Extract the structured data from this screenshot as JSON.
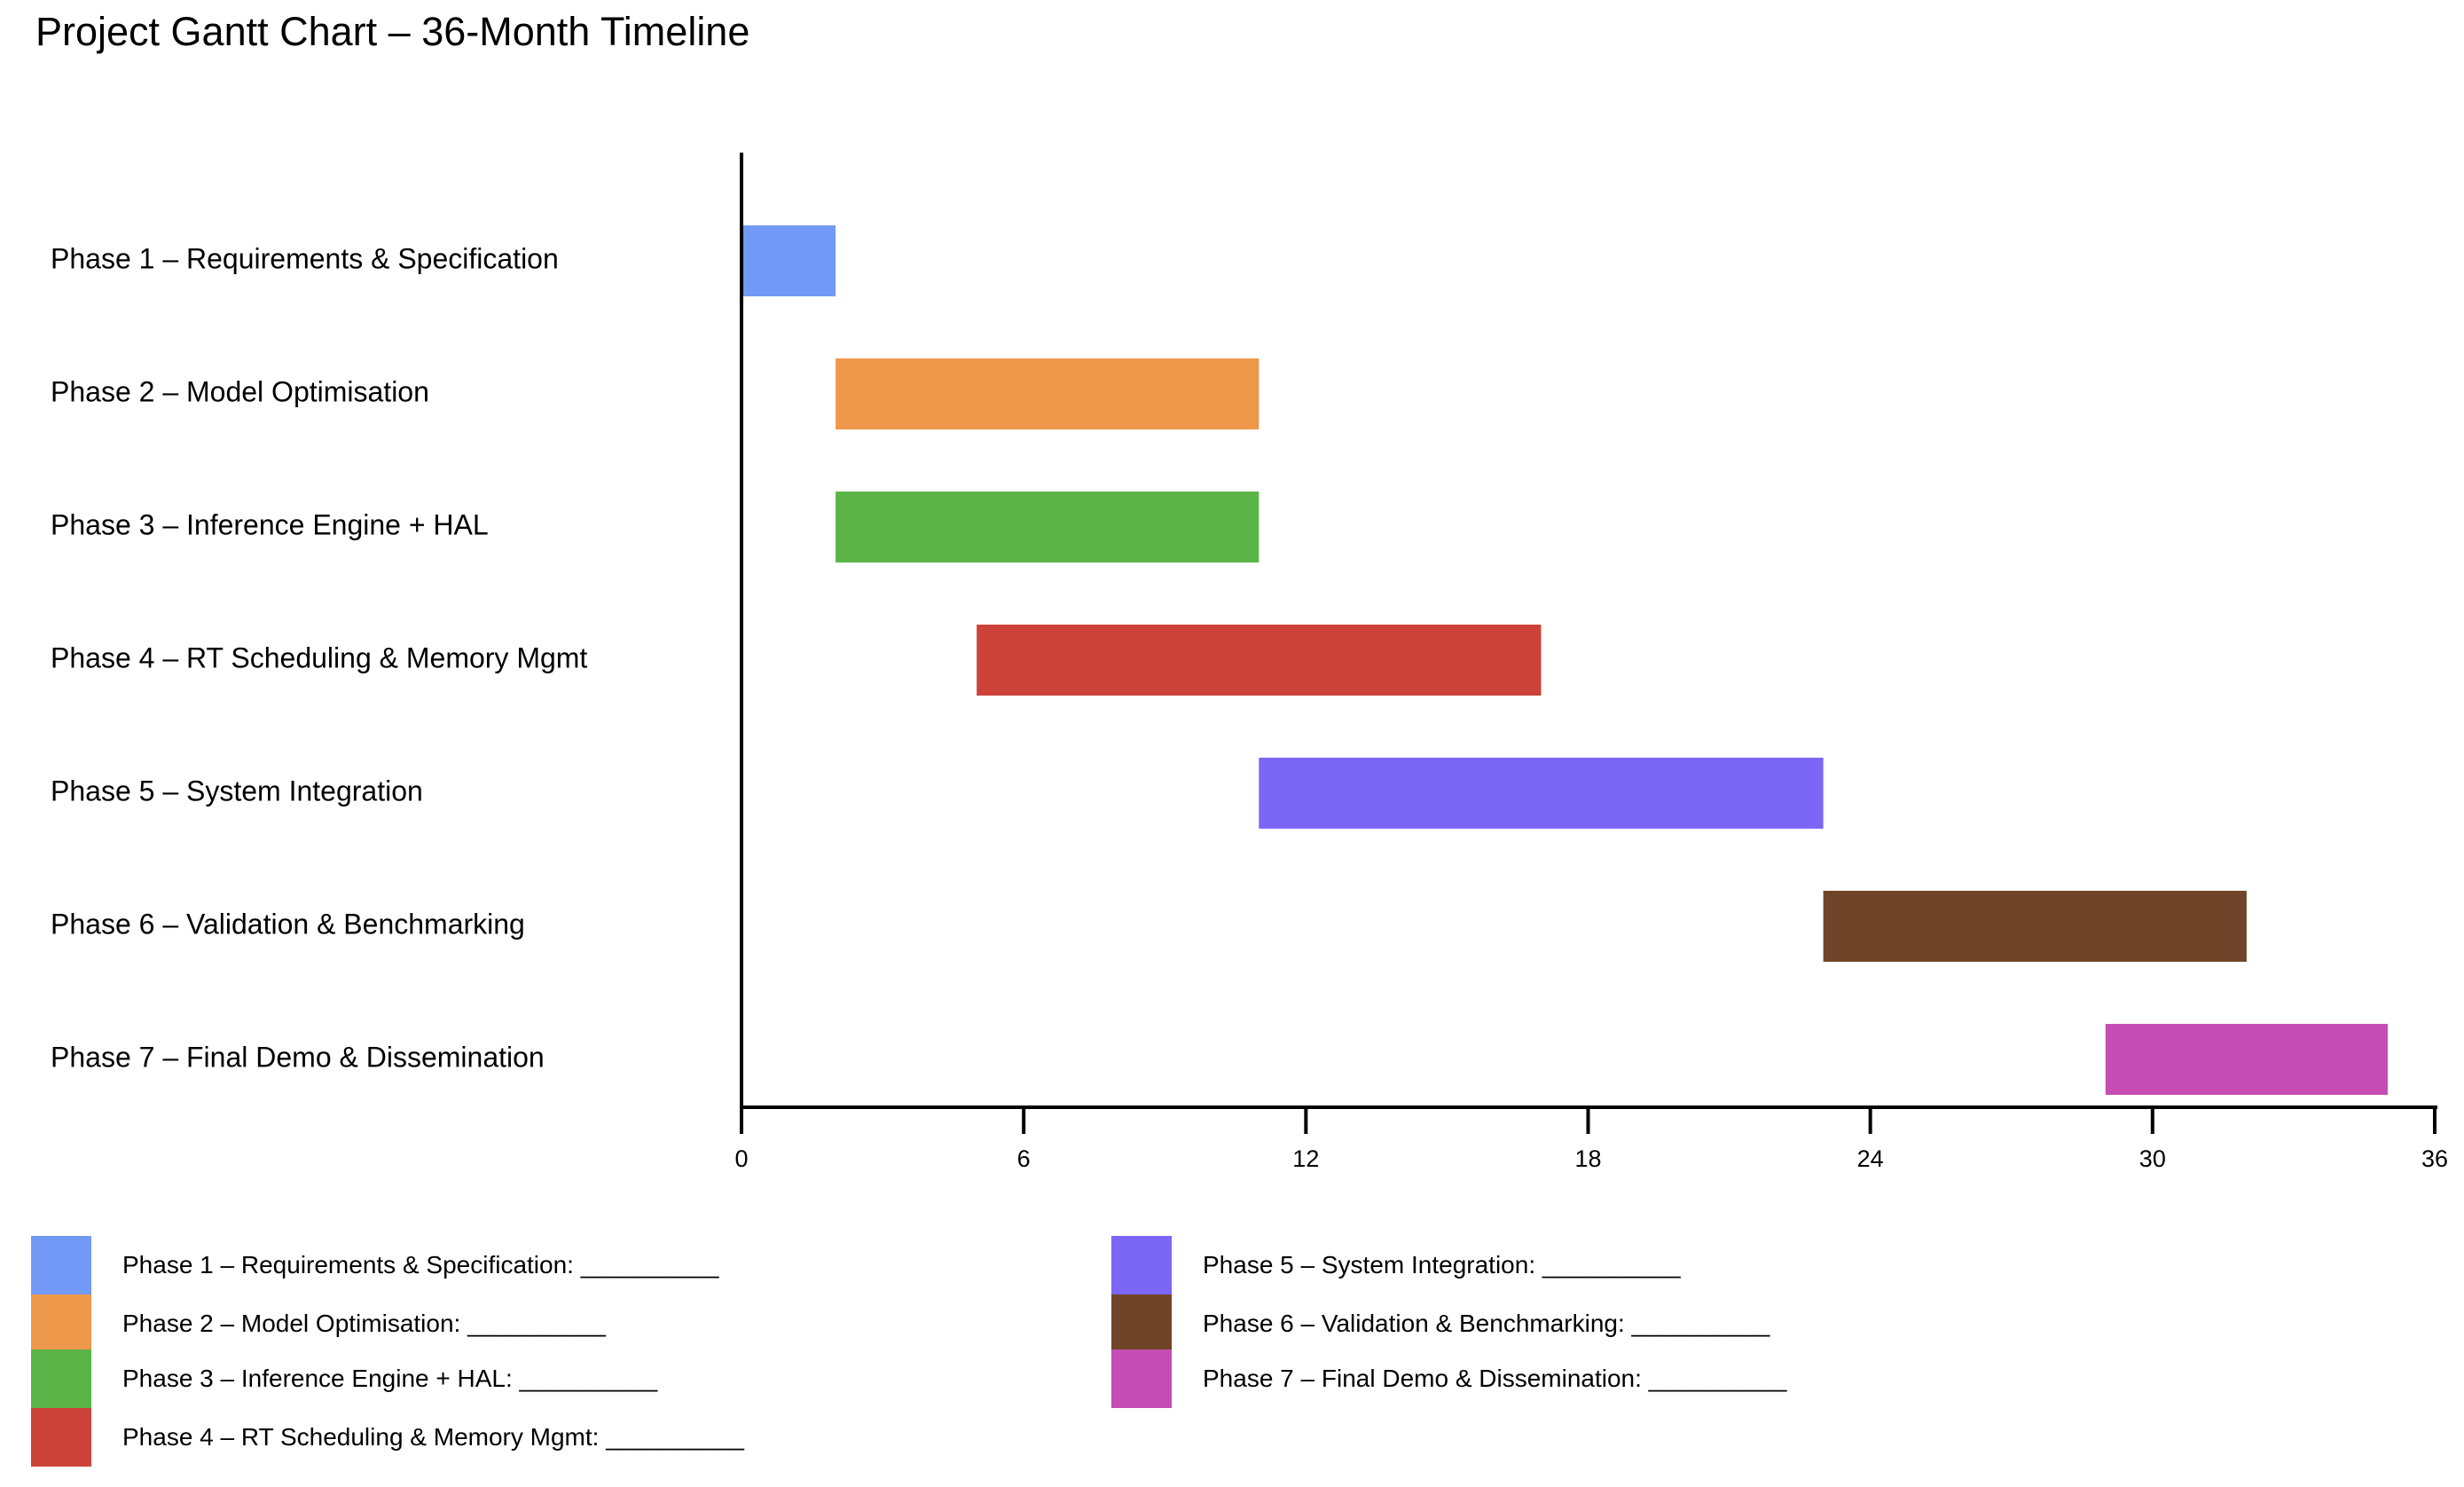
{
  "chart_data": {
    "type": "gantt",
    "title": "Project Gantt Chart – 36-Month Timeline",
    "xlabel": "",
    "ylabel": "",
    "xlim": [
      0,
      36
    ],
    "x_ticks": [
      "0",
      "6",
      "12",
      "18",
      "24",
      "30",
      "36"
    ],
    "grid": false,
    "legend_position": "bottom",
    "tasks": [
      {
        "label": "Phase 1 – Requirements & Specification",
        "start": 0,
        "end": 2,
        "color": "#7299F5"
      },
      {
        "label": "Phase 2 – Model Optimisation",
        "start": 2,
        "end": 11,
        "color": "#EE984C"
      },
      {
        "label": "Phase 3 – Inference Engine + HAL",
        "start": 2,
        "end": 11,
        "color": "#5BB447"
      },
      {
        "label": "Phase 4 – RT Scheduling & Memory Mgmt",
        "start": 5,
        "end": 17,
        "color": "#CC4238"
      },
      {
        "label": "Phase 5 – System Integration",
        "start": 11,
        "end": 23,
        "color": "#7B66F5"
      },
      {
        "label": "Phase 6 – Validation & Benchmarking",
        "start": 23,
        "end": 32,
        "color": "#6F4428"
      },
      {
        "label": "Phase 7 – Final Demo & Dissemination",
        "start": 29,
        "end": 35,
        "color": "#C54DB3"
      }
    ]
  },
  "legend": {
    "items": [
      {
        "text": "Phase 1 – Requirements & Specification: __________",
        "color": "#7299F5"
      },
      {
        "text": "Phase 2 – Model Optimisation: __________",
        "color": "#EE984C"
      },
      {
        "text": "Phase 3 – Inference Engine + HAL: __________",
        "color": "#5BB447"
      },
      {
        "text": "Phase 4 – RT Scheduling & Memory Mgmt: __________",
        "color": "#CC4238"
      },
      {
        "text": "Phase 5 – System Integration: __________",
        "color": "#7B66F5"
      },
      {
        "text": "Phase 6 – Validation & Benchmarking: __________",
        "color": "#6F4428"
      },
      {
        "text": "Phase 7 – Final Demo & Dissemination: __________",
        "color": "#C54DB3"
      }
    ]
  }
}
